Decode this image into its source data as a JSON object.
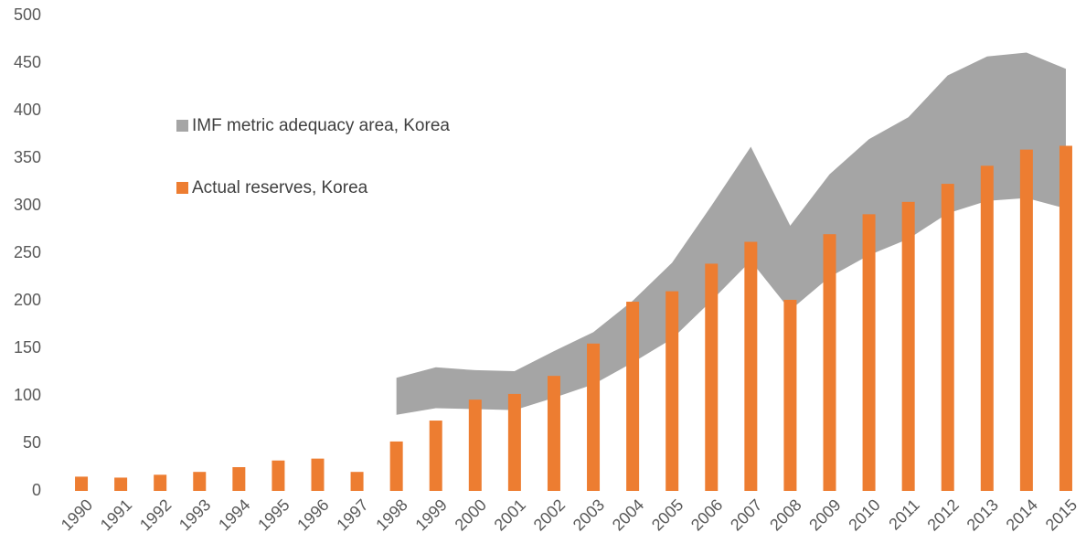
{
  "chart_data": {
    "type": "bar-range",
    "categories": [
      "1990",
      "1991",
      "1992",
      "1993",
      "1994",
      "1995",
      "1996",
      "1997",
      "1998",
      "1999",
      "2000",
      "2001",
      "2002",
      "2003",
      "2004",
      "2005",
      "2006",
      "2007",
      "2008",
      "2009",
      "2010",
      "2011",
      "2012",
      "2013",
      "2014",
      "2015"
    ],
    "series": [
      {
        "name": "IMF metric adequacy area, Korea",
        "type": "range",
        "color": "#a5a5a5",
        "low": [
          null,
          null,
          null,
          null,
          null,
          null,
          null,
          null,
          80,
          87,
          86,
          85,
          98,
          112,
          135,
          160,
          200,
          242,
          190,
          225,
          248,
          265,
          292,
          305,
          308,
          297
        ],
        "high": [
          null,
          null,
          null,
          null,
          null,
          null,
          null,
          null,
          119,
          130,
          127,
          126,
          147,
          167,
          200,
          240,
          300,
          362,
          279,
          333,
          370,
          393,
          437,
          457,
          461,
          444
        ]
      },
      {
        "name": "Actual reserves, Korea",
        "type": "bar",
        "color": "#ed7d31",
        "values": [
          15,
          14,
          17,
          20,
          25,
          32,
          34,
          20,
          52,
          74,
          96,
          102,
          121,
          155,
          199,
          210,
          239,
          262,
          201,
          270,
          291,
          304,
          323,
          342,
          359,
          363
        ]
      }
    ],
    "ylim": [
      0,
      500
    ],
    "yticks": [
      0,
      50,
      100,
      150,
      200,
      250,
      300,
      350,
      400,
      450,
      500
    ],
    "grid": false,
    "legend": "upper-left"
  }
}
